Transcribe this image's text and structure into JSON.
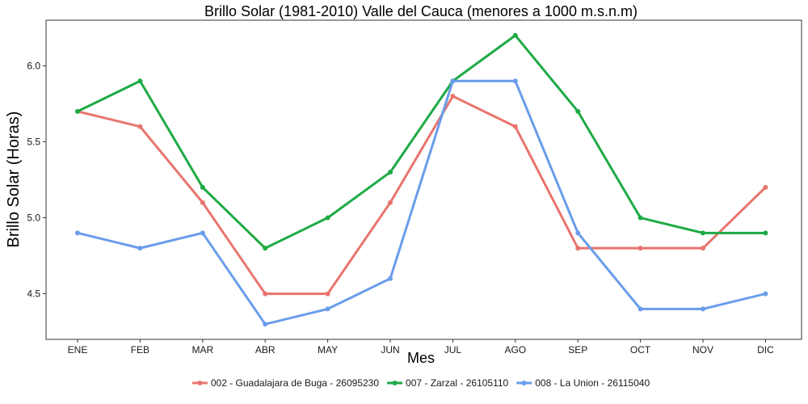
{
  "chart_data": {
    "type": "line",
    "title": "Brillo Solar (1981-2010) Valle del Cauca (menores a 1000 m.s.n.m)",
    "xlabel": "Mes",
    "ylabel": "Brillo Solar (Horas)",
    "categories": [
      "ENE",
      "FEB",
      "MAR",
      "ABR",
      "MAY",
      "JUN",
      "JUL",
      "AGO",
      "SEP",
      "OCT",
      "NOV",
      "DIC"
    ],
    "yticks": [
      4.5,
      5.0,
      5.5,
      6.0
    ],
    "ytick_labels": [
      "4.5",
      "5.0",
      "5.5",
      "6.0"
    ],
    "ylim": [
      4.2,
      6.3
    ],
    "grid": false,
    "legend_position": "bottom",
    "series": [
      {
        "name": "002 - Guadalajara de Buga - 26095230",
        "color": "#E8756D",
        "values": [
          5.7,
          5.6,
          5.1,
          4.5,
          4.5,
          5.1,
          5.8,
          5.6,
          4.8,
          4.8,
          4.8,
          5.2
        ]
      },
      {
        "name": "007 - Zarzal - 26105110",
        "color": "#1EAA45",
        "values": [
          5.7,
          5.9,
          5.2,
          4.8,
          5.0,
          5.3,
          5.9,
          6.2,
          5.7,
          5.0,
          4.9,
          4.9
        ]
      },
      {
        "name": "008 - La Union - 26115040",
        "color": "#6A9DEB",
        "values": [
          4.9,
          4.8,
          4.9,
          4.3,
          4.4,
          4.6,
          5.9,
          5.9,
          4.9,
          4.4,
          4.4,
          4.5
        ]
      }
    ]
  }
}
